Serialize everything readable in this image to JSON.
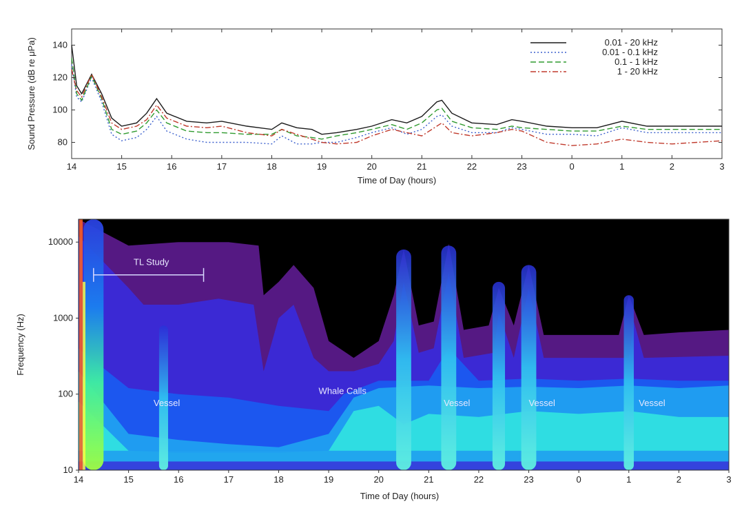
{
  "chart_data": [
    {
      "type": "line",
      "xlabel": "Time of Day (hours)",
      "ylabel": "Sound Pressure (dB re μPa)",
      "xticks": [
        "14",
        "15",
        "16",
        "17",
        "18",
        "19",
        "20",
        "21",
        "22",
        "23",
        "0",
        "1",
        "2",
        "3"
      ],
      "yticks": [
        "80",
        "100",
        "120",
        "140"
      ],
      "ylim": [
        70,
        150
      ],
      "xlim": [
        14,
        27
      ],
      "legend_position": "top-right",
      "colors": {
        "series0": "#1a1a1a",
        "series1": "#3a5fcd",
        "series2": "#2e9a2e",
        "series3": "#c0392b"
      },
      "x": [
        14.0,
        14.1,
        14.2,
        14.4,
        14.6,
        14.8,
        15.0,
        15.3,
        15.5,
        15.7,
        15.9,
        16.3,
        16.7,
        17.0,
        17.5,
        18.0,
        18.2,
        18.5,
        18.8,
        19.0,
        19.3,
        19.7,
        20.0,
        20.4,
        20.7,
        21.0,
        21.3,
        21.4,
        21.6,
        22.0,
        22.5,
        22.8,
        23.0,
        23.5,
        24.0,
        24.5,
        25.0,
        25.5,
        26.0,
        26.5,
        27.0
      ],
      "series": [
        {
          "name": "0.01 - 20  kHz",
          "dash": "solid",
          "values": [
            140,
            115,
            110,
            122,
            110,
            95,
            90,
            92,
            98,
            107,
            98,
            93,
            92,
            93,
            90,
            88,
            92,
            89,
            88,
            85,
            86,
            88,
            90,
            94,
            92,
            96,
            105,
            106,
            98,
            92,
            91,
            94,
            93,
            90,
            89,
            89,
            93,
            90,
            90,
            90,
            90
          ]
        },
        {
          "name": "0.01 - 0.1 kHz",
          "dash": "dot",
          "values": [
            128,
            108,
            105,
            120,
            105,
            85,
            81,
            83,
            88,
            96,
            87,
            82,
            80,
            80,
            80,
            79,
            84,
            79,
            79,
            80,
            80,
            83,
            86,
            89,
            85,
            88,
            96,
            97,
            90,
            86,
            86,
            89,
            88,
            85,
            85,
            84,
            89,
            86,
            86,
            86,
            86
          ]
        },
        {
          "name": "0.1 -   1  kHz",
          "dash": "dash",
          "values": [
            132,
            110,
            106,
            121,
            107,
            88,
            85,
            87,
            92,
            100,
            92,
            87,
            86,
            86,
            85,
            85,
            88,
            84,
            83,
            82,
            84,
            86,
            88,
            91,
            88,
            92,
            100,
            101,
            93,
            89,
            88,
            90,
            89,
            88,
            87,
            87,
            90,
            88,
            88,
            88,
            88
          ]
        },
        {
          "name": "1 - 20  kHz",
          "dash": "dashdot",
          "values": [
            125,
            112,
            108,
            122,
            108,
            92,
            88,
            90,
            94,
            103,
            95,
            90,
            89,
            90,
            86,
            84,
            88,
            85,
            82,
            80,
            79,
            80,
            84,
            88,
            86,
            84,
            90,
            92,
            86,
            84,
            86,
            88,
            87,
            80,
            78,
            79,
            82,
            80,
            79,
            80,
            81
          ]
        }
      ]
    },
    {
      "type": "heatmap",
      "xlabel": "Time of Day (hours)",
      "ylabel": "Frequency (Hz)",
      "yscale": "log",
      "xticks": [
        "14",
        "15",
        "16",
        "17",
        "18",
        "19",
        "20",
        "21",
        "22",
        "23",
        "0",
        "1",
        "2",
        "3"
      ],
      "yticks": [
        "10",
        "100",
        "1000",
        "10000"
      ],
      "ylim": [
        10,
        20000
      ],
      "xlim": [
        14,
        27
      ],
      "annotations": [
        {
          "text": "TL Study",
          "x": 15.1,
          "y": 5000
        },
        {
          "text": "Vessel",
          "x": 15.5,
          "y": 70
        },
        {
          "text": "Whale Calls",
          "x": 18.8,
          "y": 100
        },
        {
          "text": "Vessel",
          "x": 21.3,
          "y": 70
        },
        {
          "text": "Vessel",
          "x": 23.0,
          "y": 70
        },
        {
          "text": "Vessel",
          "x": 25.2,
          "y": 70
        }
      ],
      "tl_study_span": [
        14.3,
        16.5
      ],
      "events": [
        {
          "x": 14.3,
          "width": 0.4,
          "top": 20000
        },
        {
          "x": 15.7,
          "width": 0.18,
          "top": 800
        },
        {
          "x": 20.5,
          "width": 0.3,
          "top": 8000
        },
        {
          "x": 21.4,
          "width": 0.3,
          "top": 9000
        },
        {
          "x": 22.4,
          "width": 0.25,
          "top": 3000
        },
        {
          "x": 23.0,
          "width": 0.3,
          "top": 5000
        },
        {
          "x": 25.0,
          "width": 0.2,
          "top": 2000
        }
      ],
      "colormap": [
        "#000000",
        "#3a0a5a",
        "#5a1a8a",
        "#3a2ad8",
        "#1a5af0",
        "#20a0f0",
        "#30e0e0",
        "#80ff80",
        "#ffff40",
        "#ff6020"
      ]
    }
  ]
}
